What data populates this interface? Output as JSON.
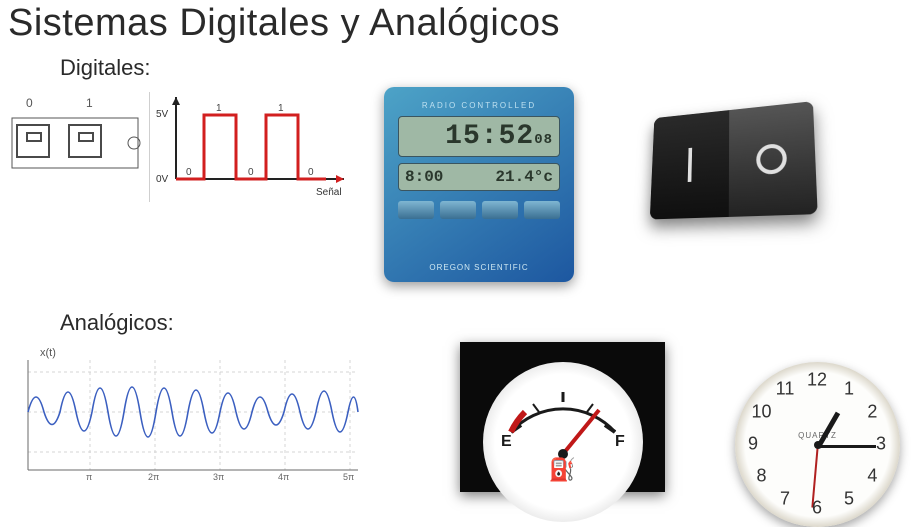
{
  "title": "Sistemas Digitales y Analógicos",
  "sections": {
    "digital_label": "Digitales:",
    "analog_label": "Analógicos:"
  },
  "digital_circuit": {
    "state0": "0",
    "state1": "1",
    "box_border": "#4a4a4a"
  },
  "square_wave": {
    "yhigh_label": "5V",
    "ylow_label": "0V",
    "x_label": "Señal",
    "bit_labels": [
      "0",
      "1",
      "0",
      "1",
      "0"
    ],
    "line_color": "#d21f1f",
    "axis_color": "#222222",
    "arrow_color": "#d21f1f"
  },
  "digital_clock": {
    "top_label": "RADIO CONTROLLED",
    "time": "15:52",
    "seconds": "08",
    "alarm": "8:00",
    "temp": "21.4°c",
    "brand": "OREGON SCIENTIFIC",
    "body_color_a": "#4da3c7",
    "body_color_b": "#1d57a0",
    "lcd_bg": "#9fb8a5"
  },
  "rocker_switch": {
    "off_glyph": "O",
    "on_glyph": "I",
    "body_dark": "#1a1a1a",
    "body_light": "#3a3a3a"
  },
  "analog_wave": {
    "fn_label": "x(t)",
    "line_color": "#3b5fc0",
    "grid_color": "#d4d4d4",
    "axis_color": "#6a6a6a",
    "xticks": [
      "π",
      "2π",
      "3π",
      "4π",
      "5π"
    ]
  },
  "fuel_gauge": {
    "empty": "E",
    "full": "F",
    "needle_color": "#c01818",
    "tick_color": "#1a1a1a",
    "pump_icon": "⛽"
  },
  "analog_clock": {
    "numbers": [
      "12",
      "1",
      "2",
      "3",
      "4",
      "5",
      "6",
      "7",
      "8",
      "9",
      "10",
      "11"
    ],
    "brand": "QUARTZ",
    "hour_angle": -60,
    "minute_angle": 90,
    "second_angle": 180,
    "second_color": "#b02020"
  }
}
